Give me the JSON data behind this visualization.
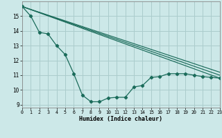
{
  "background_color": "#cce8e8",
  "grid_color": "#aacccc",
  "line_color": "#1a6b5a",
  "xlabel": "Humidex (Indice chaleur)",
  "xlim": [
    0,
    23
  ],
  "ylim": [
    8.8,
    16.0
  ],
  "yticks": [
    9,
    10,
    11,
    12,
    13,
    14,
    15
  ],
  "xticks": [
    0,
    1,
    2,
    3,
    4,
    5,
    6,
    7,
    8,
    9,
    10,
    11,
    12,
    13,
    14,
    15,
    16,
    17,
    18,
    19,
    20,
    21,
    22,
    23
  ],
  "main_x": [
    0,
    1,
    2,
    3,
    4,
    5,
    6,
    7,
    8,
    9,
    10,
    11,
    12,
    13,
    14,
    15,
    16,
    17,
    18,
    19,
    20,
    21,
    22,
    23
  ],
  "main_y": [
    15.65,
    15.0,
    13.9,
    13.8,
    13.0,
    12.4,
    11.1,
    9.65,
    9.2,
    9.2,
    9.45,
    9.5,
    9.5,
    10.2,
    10.3,
    10.85,
    10.9,
    11.1,
    11.1,
    11.1,
    11.0,
    10.9,
    10.85,
    10.8
  ],
  "band_lines": [
    {
      "x": [
        0,
        23
      ],
      "y": [
        15.65,
        10.8
      ]
    },
    {
      "x": [
        0,
        23
      ],
      "y": [
        15.65,
        11.0
      ]
    },
    {
      "x": [
        0,
        23
      ],
      "y": [
        15.65,
        11.2
      ]
    }
  ]
}
